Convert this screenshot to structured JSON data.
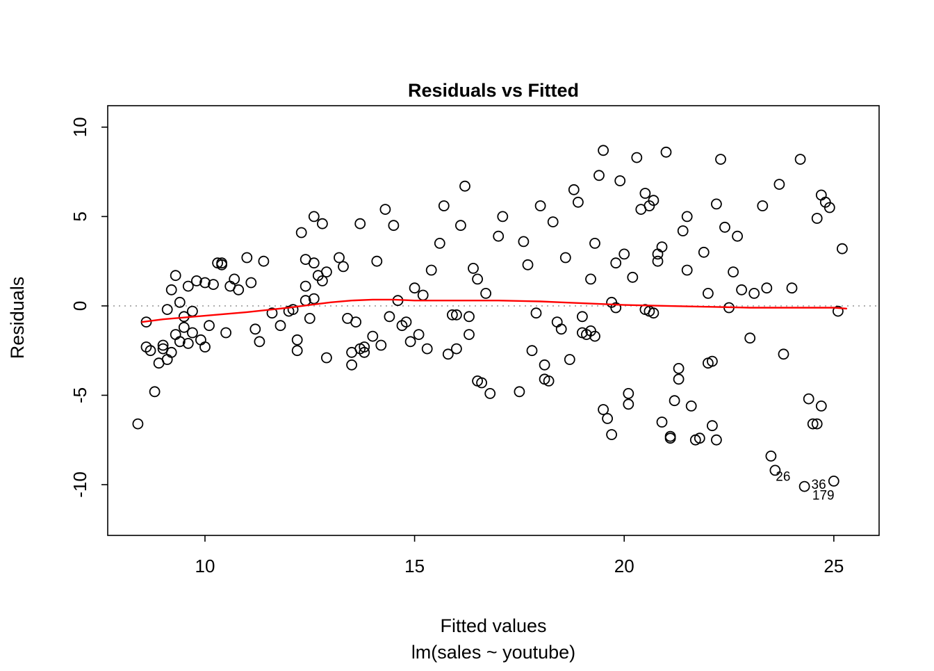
{
  "colors": {
    "point_stroke": "#000000",
    "smooth": "#ff0000",
    "zero_line": "#9b9b9b",
    "frame": "#000000",
    "background": "#ffffff"
  },
  "chart_data": {
    "type": "scatter",
    "title": "Residuals vs Fitted",
    "xlabel": "Fitted values",
    "sublabel": "lm(sales ~ youtube)",
    "ylabel": "Residuals",
    "xlim": [
      7.68,
      26.08
    ],
    "ylim": [
      -12.84,
      11.2
    ],
    "xticks": [
      10,
      15,
      20,
      25
    ],
    "yticks": [
      -10,
      -5,
      0,
      5,
      10
    ],
    "zero_line_y": 0,
    "grid": false,
    "legend": "none",
    "points": [
      [
        8.4,
        -6.6
      ],
      [
        8.6,
        -0.9
      ],
      [
        8.6,
        -2.3
      ],
      [
        8.7,
        -2.5
      ],
      [
        8.8,
        -4.8
      ],
      [
        8.9,
        -3.2
      ],
      [
        9.0,
        -2.4
      ],
      [
        9.0,
        -2.2
      ],
      [
        9.1,
        -0.2
      ],
      [
        9.1,
        -3.0
      ],
      [
        9.2,
        -2.6
      ],
      [
        9.2,
        0.9
      ],
      [
        9.3,
        1.7
      ],
      [
        9.3,
        -1.6
      ],
      [
        9.4,
        0.2
      ],
      [
        9.4,
        -2.0
      ],
      [
        9.5,
        -0.6
      ],
      [
        9.5,
        -1.2
      ],
      [
        9.6,
        -2.1
      ],
      [
        9.6,
        1.1
      ],
      [
        9.7,
        -1.5
      ],
      [
        9.7,
        -0.3
      ],
      [
        9.8,
        1.4
      ],
      [
        9.9,
        -1.9
      ],
      [
        10.0,
        1.3
      ],
      [
        10.0,
        -2.3
      ],
      [
        10.1,
        -1.1
      ],
      [
        10.2,
        1.2
      ],
      [
        10.3,
        2.4
      ],
      [
        10.4,
        2.4
      ],
      [
        10.4,
        2.3
      ],
      [
        10.5,
        -1.5
      ],
      [
        10.6,
        1.1
      ],
      [
        10.7,
        1.5
      ],
      [
        10.8,
        0.9
      ],
      [
        11.0,
        2.7
      ],
      [
        11.1,
        1.3
      ],
      [
        11.2,
        -1.3
      ],
      [
        11.3,
        -2.0
      ],
      [
        11.4,
        2.5
      ],
      [
        11.6,
        -0.4
      ],
      [
        11.8,
        -1.1
      ],
      [
        12.0,
        -0.3
      ],
      [
        12.1,
        -0.2
      ],
      [
        12.2,
        -1.9
      ],
      [
        12.2,
        -2.5
      ],
      [
        12.3,
        4.1
      ],
      [
        12.4,
        2.6
      ],
      [
        12.4,
        1.1
      ],
      [
        12.4,
        0.3
      ],
      [
        12.5,
        -0.7
      ],
      [
        12.6,
        0.4
      ],
      [
        12.6,
        2.4
      ],
      [
        12.6,
        5.0
      ],
      [
        12.7,
        1.7
      ],
      [
        12.8,
        1.4
      ],
      [
        12.8,
        4.6
      ],
      [
        12.9,
        -2.9
      ],
      [
        12.9,
        1.9
      ],
      [
        13.2,
        2.7
      ],
      [
        13.3,
        2.2
      ],
      [
        13.4,
        -0.7
      ],
      [
        13.5,
        -3.3
      ],
      [
        13.5,
        -2.6
      ],
      [
        13.6,
        -0.9
      ],
      [
        13.7,
        4.6
      ],
      [
        13.7,
        -2.4
      ],
      [
        13.8,
        -2.6
      ],
      [
        13.8,
        -2.3
      ],
      [
        14.0,
        -1.7
      ],
      [
        14.1,
        2.5
      ],
      [
        14.2,
        -2.2
      ],
      [
        14.3,
        5.4
      ],
      [
        14.4,
        -0.6
      ],
      [
        14.5,
        4.5
      ],
      [
        14.6,
        0.3
      ],
      [
        14.7,
        -1.1
      ],
      [
        14.8,
        -0.9
      ],
      [
        14.9,
        -2.0
      ],
      [
        15.0,
        1.0
      ],
      [
        15.1,
        -1.6
      ],
      [
        15.2,
        0.6
      ],
      [
        15.3,
        -2.4
      ],
      [
        15.4,
        2.0
      ],
      [
        15.6,
        3.5
      ],
      [
        15.7,
        5.6
      ],
      [
        15.8,
        -2.7
      ],
      [
        15.9,
        -0.5
      ],
      [
        16.0,
        -2.4
      ],
      [
        16.0,
        -0.5
      ],
      [
        16.1,
        4.5
      ],
      [
        16.2,
        6.7
      ],
      [
        16.3,
        -0.6
      ],
      [
        16.3,
        -1.6
      ],
      [
        16.4,
        2.1
      ],
      [
        16.5,
        1.5
      ],
      [
        16.5,
        -4.2
      ],
      [
        16.6,
        -4.3
      ],
      [
        16.7,
        0.7
      ],
      [
        16.8,
        -4.9
      ],
      [
        17.0,
        3.9
      ],
      [
        17.1,
        5.0
      ],
      [
        17.5,
        -4.8
      ],
      [
        17.6,
        3.6
      ],
      [
        17.7,
        2.3
      ],
      [
        17.8,
        -2.5
      ],
      [
        17.9,
        -0.4
      ],
      [
        18.0,
        5.6
      ],
      [
        18.1,
        -3.3
      ],
      [
        18.1,
        -4.1
      ],
      [
        18.2,
        -4.2
      ],
      [
        18.3,
        4.7
      ],
      [
        18.4,
        -0.9
      ],
      [
        18.5,
        -1.3
      ],
      [
        18.6,
        2.7
      ],
      [
        18.7,
        -3.0
      ],
      [
        18.8,
        6.5
      ],
      [
        18.9,
        5.8
      ],
      [
        19.0,
        -0.6
      ],
      [
        19.0,
        -1.5
      ],
      [
        19.1,
        -1.6
      ],
      [
        19.2,
        -1.4
      ],
      [
        19.2,
        1.5
      ],
      [
        19.3,
        3.5
      ],
      [
        19.3,
        -1.7
      ],
      [
        19.4,
        7.3
      ],
      [
        19.5,
        8.7
      ],
      [
        19.5,
        -5.8
      ],
      [
        19.6,
        -6.3
      ],
      [
        19.7,
        -7.2
      ],
      [
        19.7,
        0.2
      ],
      [
        19.8,
        2.4
      ],
      [
        19.8,
        -0.1
      ],
      [
        19.9,
        7.0
      ],
      [
        20.0,
        2.9
      ],
      [
        20.1,
        -4.9
      ],
      [
        20.1,
        -5.5
      ],
      [
        20.2,
        1.6
      ],
      [
        20.3,
        8.3
      ],
      [
        20.4,
        5.4
      ],
      [
        20.5,
        -0.2
      ],
      [
        20.5,
        6.3
      ],
      [
        20.6,
        5.6
      ],
      [
        20.6,
        -0.3
      ],
      [
        20.7,
        5.9
      ],
      [
        20.7,
        -0.4
      ],
      [
        20.8,
        2.9
      ],
      [
        20.8,
        2.5
      ],
      [
        20.9,
        3.3
      ],
      [
        20.9,
        -6.5
      ],
      [
        21.0,
        8.6
      ],
      [
        21.1,
        -7.3
      ],
      [
        21.1,
        -7.4
      ],
      [
        21.2,
        -5.3
      ],
      [
        21.3,
        -3.5
      ],
      [
        21.3,
        -4.1
      ],
      [
        21.4,
        4.2
      ],
      [
        21.5,
        2.0
      ],
      [
        21.5,
        5.0
      ],
      [
        21.6,
        -5.6
      ],
      [
        21.7,
        -7.5
      ],
      [
        21.8,
        -7.4
      ],
      [
        21.9,
        3.0
      ],
      [
        22.0,
        0.7
      ],
      [
        22.0,
        -3.2
      ],
      [
        22.1,
        -3.1
      ],
      [
        22.1,
        -6.7
      ],
      [
        22.2,
        5.7
      ],
      [
        22.2,
        -7.5
      ],
      [
        22.3,
        8.2
      ],
      [
        22.4,
        4.4
      ],
      [
        22.5,
        -0.1
      ],
      [
        22.6,
        1.9
      ],
      [
        22.7,
        3.9
      ],
      [
        22.8,
        0.9
      ],
      [
        23.0,
        -1.8
      ],
      [
        23.1,
        0.7
      ],
      [
        23.3,
        5.6
      ],
      [
        23.4,
        1.0
      ],
      [
        23.5,
        -8.4
      ],
      [
        23.6,
        -9.2
      ],
      [
        23.7,
        6.8
      ],
      [
        23.8,
        -2.7
      ],
      [
        24.0,
        1.0
      ],
      [
        24.2,
        8.2
      ],
      [
        24.3,
        -10.1
      ],
      [
        24.4,
        -5.2
      ],
      [
        24.5,
        -6.6
      ],
      [
        24.6,
        -6.6
      ],
      [
        24.6,
        4.9
      ],
      [
        24.7,
        6.2
      ],
      [
        24.7,
        -5.6
      ],
      [
        24.8,
        5.8
      ],
      [
        24.9,
        5.5
      ],
      [
        25.0,
        -9.8
      ],
      [
        25.1,
        -0.3
      ],
      [
        25.2,
        3.2
      ]
    ],
    "smooth_line": {
      "name": "lowess smooth",
      "points": [
        [
          8.5,
          -0.9
        ],
        [
          9.0,
          -0.75
        ],
        [
          10.0,
          -0.55
        ],
        [
          11.0,
          -0.35
        ],
        [
          12.0,
          -0.1
        ],
        [
          12.5,
          0.05
        ],
        [
          13.0,
          0.2
        ],
        [
          13.5,
          0.3
        ],
        [
          14.0,
          0.35
        ],
        [
          14.5,
          0.35
        ],
        [
          15.0,
          0.3
        ],
        [
          16.0,
          0.3
        ],
        [
          17.0,
          0.3
        ],
        [
          18.0,
          0.25
        ],
        [
          18.5,
          0.2
        ],
        [
          19.0,
          0.15
        ],
        [
          19.5,
          0.1
        ],
        [
          20.0,
          0.05
        ],
        [
          21.0,
          0.0
        ],
        [
          22.0,
          -0.05
        ],
        [
          23.0,
          -0.1
        ],
        [
          24.0,
          -0.1
        ],
        [
          25.0,
          -0.1
        ],
        [
          25.3,
          -0.15
        ]
      ]
    },
    "annotations": [
      {
        "label": "26",
        "x": 23.79,
        "y": -9.55
      },
      {
        "label": "36",
        "x": 24.64,
        "y": -10.0
      },
      {
        "label": "179",
        "x": 24.75,
        "y": -10.6
      }
    ]
  }
}
